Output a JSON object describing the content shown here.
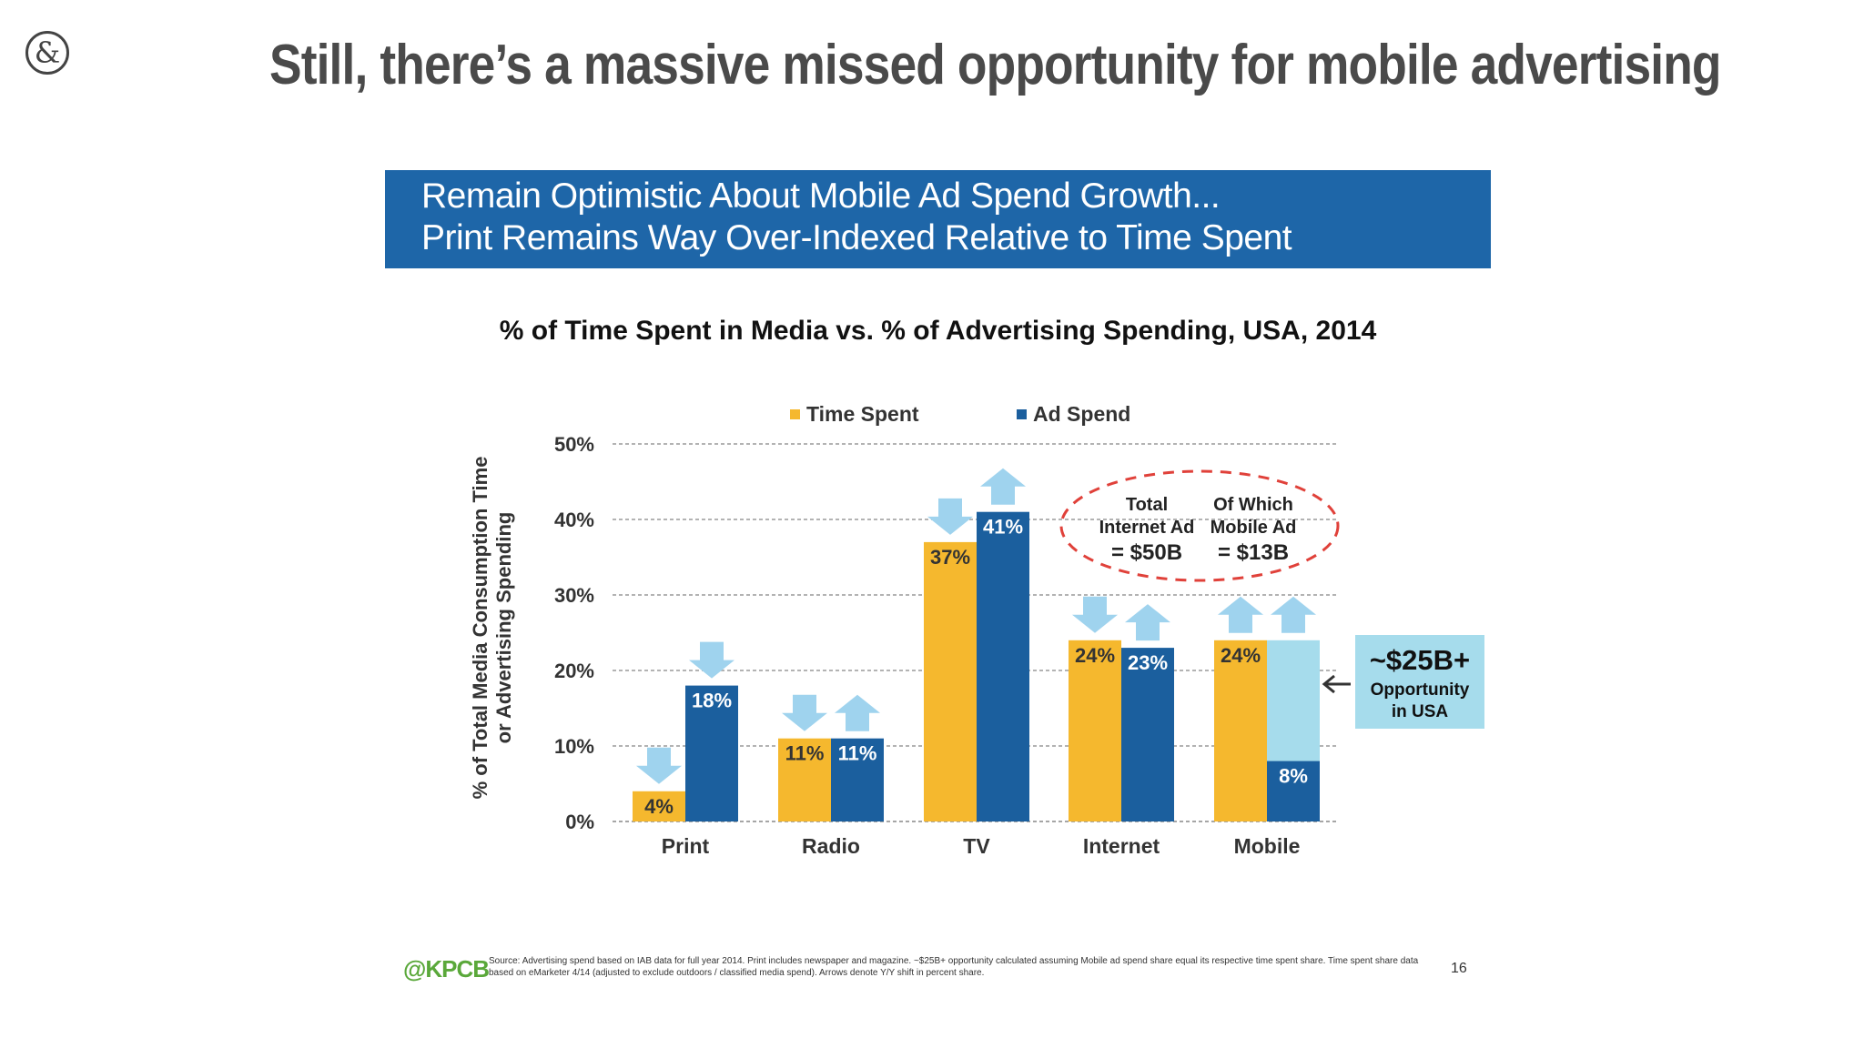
{
  "slide": {
    "title": "Still, there’s a massive missed opportunity for mobile advertising",
    "logo_icon": "ampersand-logo-icon",
    "logo_glyph": "&"
  },
  "banner": {
    "line1": "Remain Optimistic About Mobile Ad Spend Growth...",
    "line2": "Print Remains Way Over-Indexed Relative to Time Spent",
    "color": "#1e66a8"
  },
  "chart_data": {
    "type": "bar",
    "title": "% of Time Spent in Media vs. % of Advertising Spending, USA, 2014",
    "ylabel_line1": "% of Total Media Consumption Time",
    "ylabel_line2": "or Advertising Spending",
    "xlabel": "",
    "ylim": [
      0,
      50
    ],
    "yticks": [
      0,
      10,
      20,
      30,
      40,
      50
    ],
    "ytick_labels": [
      "0%",
      "10%",
      "20%",
      "30%",
      "40%",
      "50%"
    ],
    "grid": true,
    "legend_position": "top",
    "categories": [
      "Print",
      "Radio",
      "TV",
      "Internet",
      "Mobile"
    ],
    "series": [
      {
        "name": "Time Spent",
        "color": "#f5b82e",
        "values": [
          4,
          11,
          37,
          24,
          24
        ],
        "labels": [
          "4%",
          "11%",
          "37%",
          "24%",
          "24%"
        ],
        "yoy_arrows": [
          "down",
          "down",
          "down",
          "down",
          "up"
        ]
      },
      {
        "name": "Ad Spend",
        "color": "#1b5f9e",
        "values": [
          18,
          11,
          41,
          23,
          8
        ],
        "labels": [
          "18%",
          "11%",
          "41%",
          "23%",
          "8%"
        ],
        "yoy_arrows": [
          "down",
          "up",
          "up",
          "up",
          "up"
        ]
      }
    ],
    "opportunity_gap": {
      "category": "Mobile",
      "top_value": 24,
      "color": "#a6dcec",
      "box_line1": "~$25B+",
      "box_line2": "Opportunity",
      "box_line3": "in USA"
    },
    "annotation": {
      "col1_line1": "Total",
      "col1_line2": "Internet Ad",
      "col1_line3": "= $50B",
      "col2_line1": "Of Which",
      "col2_line2": "Mobile Ad",
      "col2_line3": "= $13B"
    },
    "arrow_color": "#9fd3ee"
  },
  "footer": {
    "brand": "@KPCB",
    "source": "Source: Advertising spend based on IAB data for full year 2014. Print includes newspaper and magazine. ~$25B+ opportunity calculated assuming Mobile ad spend share equal its respective time spent share. Time spent share data based on eMarketer 4/14 (adjusted to exclude outdoors / classified media spend). Arrows denote Y/Y shift in percent share.",
    "page_number": "16"
  }
}
